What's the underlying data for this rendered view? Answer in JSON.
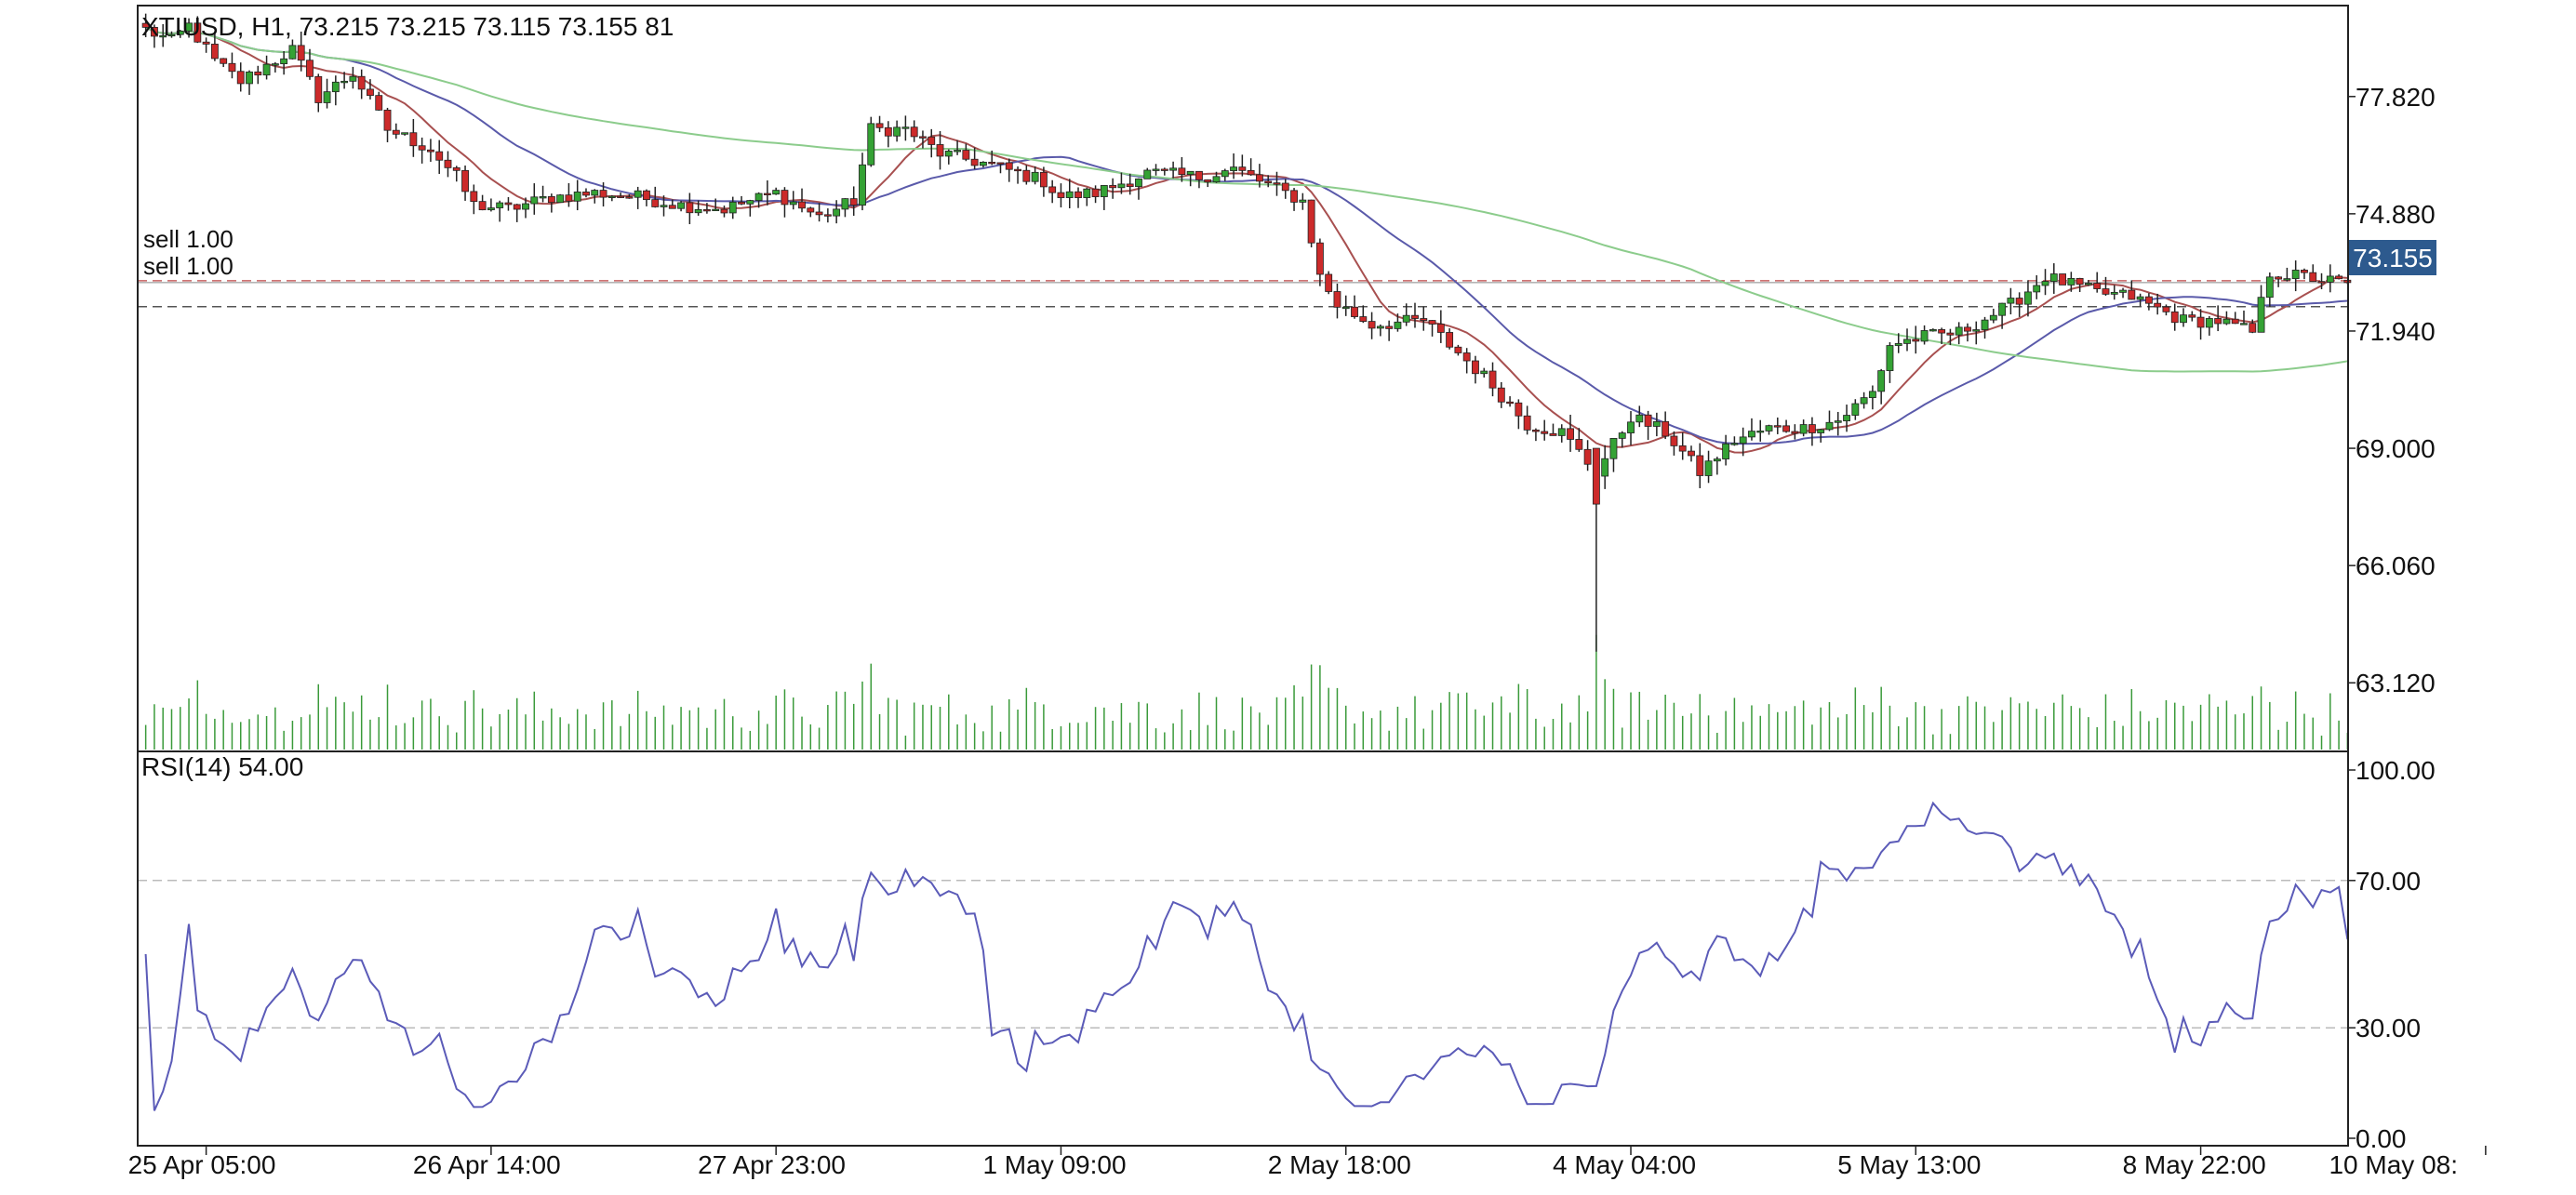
{
  "chart_data": [
    {
      "type": "candlestick",
      "title": "XTIUSD, H1, 73.215 73.215 73.115 73.155 81",
      "symbol": "XTIUSD",
      "timeframe": "H1",
      "last_bar": {
        "open": 73.215,
        "high": 73.215,
        "low": 73.115,
        "close": 73.155,
        "volume": 81
      },
      "ylim": [
        61.4,
        80.1
      ],
      "y_ticks": [
        "77.820",
        "74.880",
        "71.940",
        "69.000",
        "66.060",
        "63.120"
      ],
      "y_tick_values": [
        77.82,
        74.88,
        71.94,
        69.0,
        66.06,
        63.12
      ],
      "current_price_label": "73.155",
      "current_price": 73.155,
      "orders": [
        {
          "label": "sell 1.00",
          "price": 73.2
        },
        {
          "label": "sell 1.00",
          "price": 72.55
        }
      ],
      "x_tick_labels": [
        "25 Apr 05:00",
        "26 Apr 14:00",
        "27 Apr 23:00",
        "1 May 09:00",
        "2 May 18:00",
        "4 May 04:00",
        "5 May 13:00",
        "8 May 22:00",
        "10 May 08:"
      ],
      "x_tick_positions": [
        7,
        40,
        73,
        106,
        139,
        172,
        205,
        238,
        271
      ],
      "grid": false,
      "anchors": [
        [
          0,
          79.5
        ],
        [
          3,
          79.2
        ],
        [
          5,
          79.6
        ],
        [
          8,
          78.7
        ],
        [
          11,
          78.2
        ],
        [
          14,
          78.6
        ],
        [
          17,
          79.0
        ],
        [
          20,
          77.8
        ],
        [
          24,
          78.4
        ],
        [
          28,
          77.0
        ],
        [
          33,
          76.5
        ],
        [
          36,
          75.8
        ],
        [
          38,
          75.1
        ],
        [
          42,
          75.0
        ],
        [
          47,
          75.3
        ],
        [
          52,
          75.4
        ],
        [
          57,
          75.3
        ],
        [
          62,
          75.1
        ],
        [
          67,
          75.0
        ],
        [
          73,
          75.4
        ],
        [
          78,
          74.8
        ],
        [
          82,
          75.2
        ],
        [
          84,
          77.0
        ],
        [
          88,
          77.0
        ],
        [
          92,
          76.4
        ],
        [
          98,
          76.1
        ],
        [
          104,
          75.7
        ],
        [
          106,
          75.3
        ],
        [
          110,
          75.4
        ],
        [
          116,
          75.9
        ],
        [
          122,
          75.8
        ],
        [
          126,
          76.0
        ],
        [
          130,
          75.6
        ],
        [
          134,
          75.2
        ],
        [
          136,
          73.3
        ],
        [
          138,
          72.6
        ],
        [
          142,
          72.1
        ],
        [
          148,
          72.2
        ],
        [
          152,
          71.4
        ],
        [
          155,
          70.8
        ],
        [
          158,
          70.1
        ],
        [
          160,
          69.6
        ],
        [
          164,
          69.4
        ],
        [
          168,
          68.4
        ],
        [
          170,
          69.1
        ],
        [
          172,
          69.8
        ],
        [
          176,
          69.4
        ],
        [
          180,
          68.4
        ],
        [
          184,
          69.2
        ],
        [
          188,
          69.5
        ],
        [
          192,
          69.5
        ],
        [
          196,
          69.7
        ],
        [
          200,
          70.4
        ],
        [
          202,
          71.6
        ],
        [
          206,
          71.8
        ],
        [
          210,
          71.9
        ],
        [
          216,
          72.6
        ],
        [
          220,
          73.3
        ],
        [
          226,
          72.9
        ],
        [
          230,
          72.8
        ],
        [
          236,
          72.2
        ],
        [
          240,
          72.2
        ],
        [
          244,
          71.9
        ],
        [
          246,
          73.4
        ],
        [
          250,
          73.3
        ],
        [
          254,
          73.155
        ]
      ],
      "n_bars": 256,
      "volume_ylim": [
        0,
        90
      ],
      "moving_averages": [
        {
          "color": "#a85050",
          "period": 9
        },
        {
          "color": "#5a5aaa",
          "period": 24
        },
        {
          "color": "#8ccc8c",
          "period": 96
        }
      ],
      "candle_up_color": "#34a234",
      "candle_down_color": "#cc2a2a",
      "volume_color": "#3a9a3a"
    },
    {
      "type": "line",
      "title": "RSI(14) 54.00",
      "indicator": "RSI(14)",
      "current_value": 54.0,
      "ylim": [
        0,
        100
      ],
      "y_ticks": [
        "100.00",
        "70.00",
        "30.00",
        "0.00"
      ],
      "y_tick_values": [
        100,
        70,
        30,
        0
      ],
      "levels": [
        70,
        30
      ],
      "line_color": "#5b5bb8"
    }
  ]
}
